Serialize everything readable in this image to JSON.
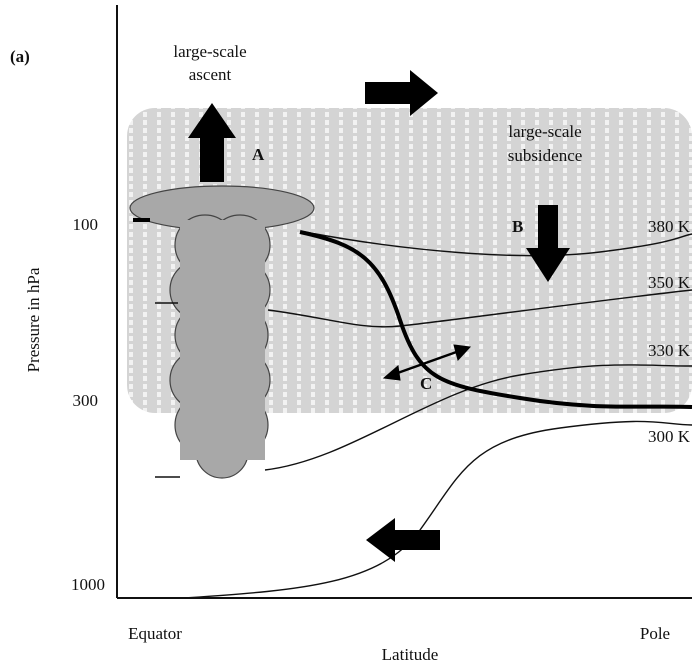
{
  "panel_label": "(a)",
  "axes": {
    "y_label": "Pressure in hPa",
    "x_label": "Latitude",
    "y_ticks": [
      "100",
      "300",
      "1000"
    ],
    "x_ends": [
      "Equator",
      "Pole"
    ]
  },
  "annotations": {
    "ascent": {
      "lines": [
        "large-scale",
        "ascent"
      ],
      "marker": "A"
    },
    "subsidence": {
      "lines": [
        "large-scale",
        "subsidence"
      ],
      "marker": "B"
    },
    "exchange": {
      "marker": "C"
    }
  },
  "isentropes": [
    "380 K",
    "350 K",
    "330 K",
    "300 K"
  ]
}
